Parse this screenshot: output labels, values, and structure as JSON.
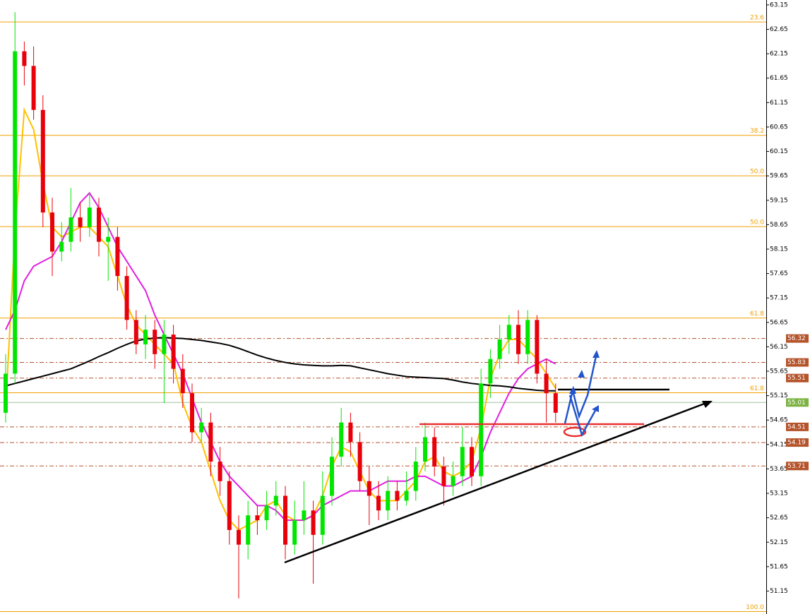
{
  "chart_data": {
    "type": "candlestick",
    "ylim": [
      50.68,
      63.25
    ],
    "yticks": [
      63.15,
      62.65,
      62.15,
      61.65,
      61.15,
      60.65,
      60.15,
      59.65,
      59.15,
      58.65,
      58.15,
      57.65,
      57.15,
      56.65,
      56.15,
      55.65,
      55.15,
      54.65,
      54.15,
      53.65,
      53.15,
      52.65,
      52.15,
      51.65,
      51.15
    ],
    "up_color": "#00e600",
    "down_color": "#e8000b",
    "open": [
      54.8,
      55.6,
      62.2,
      61.9,
      61.0,
      58.9,
      58.1,
      58.3,
      58.8,
      58.6,
      59.0,
      58.3,
      58.4,
      57.6,
      56.7,
      56.2,
      56.5,
      56.0,
      56.4,
      55.7,
      55.2,
      54.4,
      54.6,
      53.8,
      53.4,
      52.4,
      52.1,
      52.7,
      52.6,
      52.9,
      53.1,
      52.1,
      52.6,
      52.8,
      52.3,
      53.1,
      53.9,
      54.6,
      54.2,
      53.4,
      53.1,
      52.8,
      53.2,
      53.0,
      53.2,
      53.8,
      54.3,
      53.7,
      53.3,
      53.5,
      54.1,
      53.5,
      55.4,
      55.9,
      56.3,
      56.6,
      56.0,
      56.7,
      55.6,
      55.2
    ],
    "high": [
      56.0,
      63.0,
      62.4,
      62.3,
      61.3,
      59.2,
      58.7,
      59.4,
      59.1,
      59.3,
      59.2,
      58.8,
      58.6,
      57.8,
      56.9,
      56.8,
      56.7,
      56.7,
      56.6,
      56.0,
      55.4,
      54.9,
      54.8,
      54.1,
      53.6,
      52.7,
      53.0,
      52.9,
      53.2,
      53.4,
      53.3,
      53.0,
      53.4,
      53.0,
      53.6,
      54.3,
      54.9,
      54.8,
      54.4,
      53.7,
      53.4,
      53.5,
      53.4,
      53.6,
      54.1,
      54.6,
      54.5,
      53.9,
      53.8,
      54.5,
      54.3,
      55.7,
      56.1,
      56.6,
      56.8,
      56.9,
      56.9,
      56.8,
      55.9,
      55.4
    ],
    "low": [
      54.6,
      55.4,
      61.5,
      60.8,
      58.6,
      57.6,
      57.9,
      58.1,
      58.3,
      58.4,
      58.0,
      57.5,
      57.3,
      56.5,
      56.0,
      55.9,
      55.7,
      55.0,
      55.4,
      54.9,
      54.2,
      54.2,
      53.5,
      53.1,
      52.1,
      51.0,
      51.8,
      52.3,
      52.4,
      52.7,
      51.8,
      51.9,
      52.3,
      51.3,
      52.1,
      52.9,
      53.7,
      53.9,
      53.2,
      52.5,
      52.6,
      52.6,
      52.8,
      52.9,
      53.0,
      53.6,
      53.5,
      52.9,
      53.1,
      53.3,
      53.3,
      53.3,
      55.1,
      55.7,
      56.0,
      55.8,
      55.8,
      55.4,
      54.6,
      54.6
    ],
    "close": [
      55.6,
      62.2,
      61.9,
      61.0,
      58.9,
      58.1,
      58.3,
      58.8,
      58.6,
      59.0,
      58.3,
      58.4,
      57.6,
      56.7,
      56.2,
      56.5,
      56.0,
      56.4,
      55.7,
      55.2,
      54.4,
      54.6,
      53.8,
      53.4,
      52.4,
      52.1,
      52.7,
      52.6,
      52.9,
      53.1,
      52.1,
      52.6,
      52.8,
      52.3,
      53.1,
      53.9,
      54.6,
      54.2,
      53.4,
      53.1,
      52.8,
      53.2,
      53.0,
      53.2,
      53.8,
      54.3,
      53.7,
      53.3,
      53.5,
      54.1,
      53.5,
      55.4,
      55.9,
      56.3,
      56.6,
      56.0,
      56.7,
      55.6,
      55.2,
      54.8
    ],
    "moving_averages": [
      {
        "color": "#ffc000",
        "values": [
          54.9,
          58.5,
          61.0,
          60.6,
          59.5,
          58.6,
          58.4,
          58.5,
          58.6,
          58.6,
          58.4,
          58.2,
          57.6,
          57.0,
          56.6,
          56.4,
          56.2,
          56.0,
          55.8,
          55.0,
          54.5,
          54.2,
          53.6,
          53.0,
          52.6,
          52.4,
          52.5,
          52.6,
          52.9,
          53.0,
          52.7,
          52.6,
          52.6,
          52.7,
          53.1,
          53.7,
          54.1,
          54.0,
          53.6,
          53.2,
          53.0,
          53.0,
          53.0,
          53.2,
          53.4,
          53.8,
          53.9,
          53.6,
          53.5,
          53.6,
          53.8,
          54.5,
          55.5,
          56.0,
          56.3,
          56.3,
          56.1,
          55.9,
          55.6,
          55.3
        ]
      },
      {
        "color": "#e020e0",
        "values": [
          56.5,
          56.9,
          57.5,
          57.8,
          57.9,
          58.0,
          58.3,
          58.7,
          59.1,
          59.3,
          59.0,
          58.6,
          58.2,
          57.9,
          57.6,
          57.3,
          56.8,
          56.4,
          56.0,
          55.6,
          55.1,
          54.6,
          54.2,
          53.8,
          53.5,
          53.3,
          53.1,
          52.9,
          52.9,
          52.8,
          52.6,
          52.6,
          52.6,
          52.7,
          52.9,
          53.0,
          53.1,
          53.2,
          53.2,
          53.2,
          53.3,
          53.4,
          53.4,
          53.4,
          53.5,
          53.5,
          53.4,
          53.3,
          53.3,
          53.4,
          53.5,
          53.9,
          54.4,
          54.8,
          55.2,
          55.5,
          55.7,
          55.8,
          55.9,
          55.8
        ]
      },
      {
        "color": "#000000",
        "values": [
          55.35,
          55.4,
          55.45,
          55.5,
          55.55,
          55.6,
          55.65,
          55.7,
          55.78,
          55.86,
          55.95,
          56.03,
          56.12,
          56.2,
          56.27,
          56.31,
          56.33,
          56.34,
          56.33,
          56.32,
          56.3,
          56.28,
          56.25,
          56.22,
          56.18,
          56.12,
          56.05,
          55.98,
          55.92,
          55.87,
          55.83,
          55.8,
          55.78,
          55.77,
          55.76,
          55.76,
          55.77,
          55.76,
          55.72,
          55.68,
          55.64,
          55.6,
          55.57,
          55.54,
          55.53,
          55.52,
          55.51,
          55.5,
          55.47,
          55.43,
          55.4,
          55.38,
          55.36,
          55.35,
          55.33,
          55.3,
          55.28,
          55.26,
          55.25,
          55.25
        ]
      }
    ],
    "fib_color": "#f0a000",
    "fib_levels": [
      {
        "label": "23.6",
        "value": 62.8
      },
      {
        "label": "38.2",
        "value": 60.48
      },
      {
        "label": "50.0",
        "value": 59.65
      },
      {
        "label": "50.0",
        "value": 58.61
      },
      {
        "label": "61.8",
        "value": 56.74
      },
      {
        "label": "61.8",
        "value": 55.21
      },
      {
        "label": "100.0",
        "value": 50.73
      }
    ],
    "level_color": "#b5532a",
    "levels": [
      56.32,
      55.83,
      55.51,
      54.51,
      54.19,
      53.71
    ],
    "current_price": 55.01,
    "current_color": "#7cb342"
  }
}
